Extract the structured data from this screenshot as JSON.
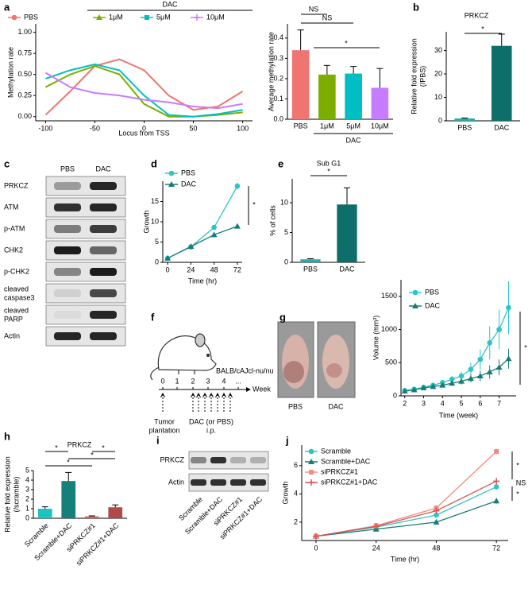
{
  "panel_labels": [
    "a",
    "b",
    "c",
    "d",
    "e",
    "f",
    "g",
    "h",
    "i",
    "j"
  ],
  "chart_data": [
    {
      "type": "line",
      "ylabel": "Methylation rate",
      "xlabel": "Locus from TSS",
      "x": [
        -100,
        -75,
        -50,
        -25,
        0,
        25,
        50,
        75,
        100
      ],
      "xlim": [
        -110,
        110
      ],
      "xticks": [
        -100,
        -50,
        0,
        50,
        100
      ],
      "ylim": [
        -0.05,
        1.1
      ],
      "yticks": [
        {
          "value": 0,
          "label": "0.00"
        },
        {
          "value": 0.25,
          "label": "0.25"
        },
        {
          "value": 0.5,
          "label": "0.50"
        },
        {
          "value": 0.75,
          "label": "0.75"
        },
        {
          "value": 1,
          "label": "1.00"
        }
      ],
      "group_label": "DAC",
      "point_markers": false,
      "legend": "top",
      "series": [
        {
          "name": "PBS",
          "color": "#f07470",
          "marker": "circle",
          "values": [
            0.02,
            0.3,
            0.6,
            0.68,
            0.55,
            0.25,
            0.08,
            0.12,
            0.3
          ]
        },
        {
          "name": "1μM",
          "color": "#7cae00",
          "marker": "triangle",
          "values": [
            0.35,
            0.5,
            0.6,
            0.5,
            0.15,
            0.0,
            0.0,
            0.02,
            0.05
          ]
        },
        {
          "name": "5μM",
          "color": "#00bfc4",
          "marker": "square",
          "values": [
            0.45,
            0.55,
            0.62,
            0.55,
            0.25,
            0.02,
            0.0,
            0.03,
            0.08
          ]
        },
        {
          "name": "10μM",
          "color": "#c77cff",
          "marker": "plus",
          "values": [
            0.52,
            0.35,
            0.28,
            0.25,
            0.2,
            0.17,
            0.12,
            0.1,
            0.15
          ]
        }
      ]
    },
    {
      "type": "bar",
      "ylabel": "Average methylation rate",
      "categories": [
        "PBS",
        "1μM",
        "5μM",
        "10μM"
      ],
      "values": [
        0.34,
        0.22,
        0.225,
        0.155
      ],
      "errors": [
        0.1,
        0.045,
        0.035,
        0.095
      ],
      "colors": [
        "#f07470",
        "#7cae00",
        "#00bfc4",
        "#c77cff"
      ],
      "ylim": [
        0,
        0.47
      ],
      "yticks": [
        {
          "value": 0,
          "label": "0.0"
        },
        {
          "value": 0.1,
          "label": "0.1"
        },
        {
          "value": 0.2,
          "label": "0.2"
        },
        {
          "value": 0.3,
          "label": "0.3"
        },
        {
          "value": 0.4,
          "label": "0.4"
        }
      ],
      "annotations": [
        "NS",
        "NS",
        "*"
      ],
      "group_label": "DAC"
    },
    {
      "type": "bar",
      "title": "PRKCZ",
      "ylabel": [
        "Relative fold expression",
        "(/PBS)"
      ],
      "categories": [
        "PBS",
        "DAC"
      ],
      "values": [
        1,
        32
      ],
      "errors": [
        0.2,
        5
      ],
      "colors": [
        "#2aa9a9",
        "#0e6e69"
      ],
      "ylim": [
        0,
        38
      ],
      "yticks": [
        0,
        10,
        20,
        30
      ],
      "annotations": [
        "*"
      ]
    },
    {
      "type": "line",
      "ylabel": "Growth",
      "xlabel": "Time (hr)",
      "x": [
        0,
        24,
        48,
        72
      ],
      "xlim": [
        -5,
        77
      ],
      "xticks": [
        0,
        24,
        48,
        72
      ],
      "ylim": [
        0,
        20
      ],
      "yticks": [
        0,
        5,
        10,
        15
      ],
      "point_markers": true,
      "legend": "top-left",
      "annotations": [
        "*"
      ],
      "series": [
        {
          "name": "PBS",
          "color": "#2ec4c4",
          "marker": "circle",
          "values": [
            1,
            3.8,
            8.6,
            18.8
          ],
          "errors": [
            0.05,
            0.15,
            0.4,
            0.8
          ]
        },
        {
          "name": "DAC",
          "color": "#167c78",
          "marker": "triangle",
          "values": [
            1,
            3.9,
            6.8,
            8.9
          ],
          "errors": [
            0.05,
            0.15,
            0.3,
            0.4
          ]
        }
      ]
    },
    {
      "type": "bar",
      "title": "Sub G1",
      "ylabel": "% of cells",
      "categories": [
        "PBS",
        "DAC"
      ],
      "values": [
        0.5,
        9.7
      ],
      "errors": [
        0.1,
        2.8
      ],
      "colors": [
        "#2aa9a9",
        "#0e6e69"
      ],
      "ylim": [
        0,
        14
      ],
      "yticks": [
        0,
        5,
        10
      ],
      "annotations": [
        "*"
      ]
    },
    {
      "type": "line",
      "ylabel": "Volume (mm³)",
      "xlabel": "Time (week)",
      "x": [
        2,
        2.5,
        3,
        3.5,
        4,
        4.5,
        5,
        5.5,
        6,
        6.5,
        7,
        7.5
      ],
      "xlim": [
        1.8,
        7.9
      ],
      "xticks": [
        2,
        3,
        4,
        5,
        6,
        7
      ],
      "ylim": [
        0,
        1750
      ],
      "yticks": [
        0,
        500,
        1000,
        1500
      ],
      "point_markers": true,
      "legend": "top-left",
      "annotations": [
        "*"
      ],
      "series": [
        {
          "name": "PBS",
          "color": "#2ec4c4",
          "marker": "circle",
          "values": [
            80,
            100,
            130,
            160,
            200,
            250,
            300,
            400,
            550,
            800,
            1000,
            1330
          ],
          "errors": [
            20,
            20,
            25,
            30,
            40,
            50,
            60,
            100,
            150,
            250,
            300,
            400
          ]
        },
        {
          "name": "DAC",
          "color": "#167c78",
          "marker": "triangle",
          "values": [
            70,
            90,
            120,
            140,
            160,
            190,
            220,
            260,
            300,
            360,
            430,
            560
          ],
          "errors": [
            15,
            15,
            20,
            25,
            30,
            40,
            50,
            60,
            80,
            100,
            120,
            150
          ]
        }
      ]
    },
    {
      "type": "bar",
      "title": "PRKCZ",
      "ylabel": [
        "Relative fold expression",
        "(/scramble)"
      ],
      "categories": [
        "Scramble",
        "Scramble+DAC",
        "siPRKCZ#1",
        "siPRKCZ#1+DAC"
      ],
      "values": [
        1,
        3.9,
        0.2,
        1.15
      ],
      "errors": [
        0.2,
        0.9,
        0.05,
        0.25
      ],
      "colors": [
        "#1cc3c3",
        "#157f7a",
        "#e85c5c",
        "#b04a4a"
      ],
      "ylim": [
        0,
        5
      ],
      "yticks": [
        0,
        1,
        2,
        3,
        4,
        5
      ],
      "annotations": [
        "*",
        "*",
        "*",
        "*"
      ]
    },
    {
      "type": "line",
      "ylabel": "Growth",
      "xlabel": "Time (hr)",
      "x": [
        0,
        24,
        48,
        72
      ],
      "xlim": [
        -5.7,
        76.7
      ],
      "xticks": [
        0,
        24,
        48,
        72
      ],
      "ylim": [
        0.7,
        7.45
      ],
      "yticks": [
        2,
        4,
        6
      ],
      "point_markers": true,
      "legend": "top-left",
      "annotations": [
        "*",
        "NS",
        "*"
      ],
      "series": [
        {
          "name": "Scramble",
          "color": "#2ec4c4",
          "marker": "circle",
          "values": [
            1,
            1.65,
            2.5,
            4.5
          ],
          "errors": [
            0.05,
            0.1,
            0.15,
            0.2
          ]
        },
        {
          "name": "Scramble+DAC",
          "color": "#167c78",
          "marker": "triangle",
          "values": [
            1,
            1.5,
            2.0,
            3.5
          ],
          "errors": [
            0.05,
            0.1,
            0.15,
            0.2
          ]
        },
        {
          "name": "siPRKCZ#1",
          "color": "#f28b82",
          "marker": "square",
          "values": [
            1,
            1.75,
            3.0,
            7.0
          ],
          "errors": [
            0.05,
            0.1,
            0.15,
            0.2
          ]
        },
        {
          "name": "siPRKCZ#1+DAC",
          "color": "#d9534f",
          "marker": "plus",
          "values": [
            1,
            1.7,
            2.8,
            4.9
          ],
          "errors": [
            0.05,
            0.1,
            0.15,
            0.2
          ]
        }
      ]
    }
  ],
  "blot_c": {
    "columns": [
      "PBS",
      "DAC"
    ],
    "rows": [
      [
        "PRKCZ"
      ],
      [
        "ATM"
      ],
      [
        "p-ATM"
      ],
      [
        "CHK2"
      ],
      [
        "p-CHK2"
      ],
      [
        "cleaved",
        "caspase3"
      ],
      [
        "cleaved",
        "PARP"
      ],
      [
        "Actin"
      ]
    ]
  },
  "schematic_f": {
    "strain": "BALB/cAJcl-nu/nu",
    "ticks": [
      "0",
      "1",
      "2",
      "3",
      "4",
      "..."
    ],
    "unit": "Week",
    "plantation": [
      "Tumor",
      "plantation"
    ],
    "treatment": [
      "DAC (or PBS)",
      "i.p."
    ]
  },
  "photos_g": [
    "PBS",
    "DAC"
  ],
  "blot_i": {
    "rows": [
      "PRKCZ",
      "Actin"
    ],
    "columns": [
      "Scramble",
      "Scramble+DAC",
      "siPRKCZ#1",
      "siPRKCZ#1+DAC"
    ]
  }
}
